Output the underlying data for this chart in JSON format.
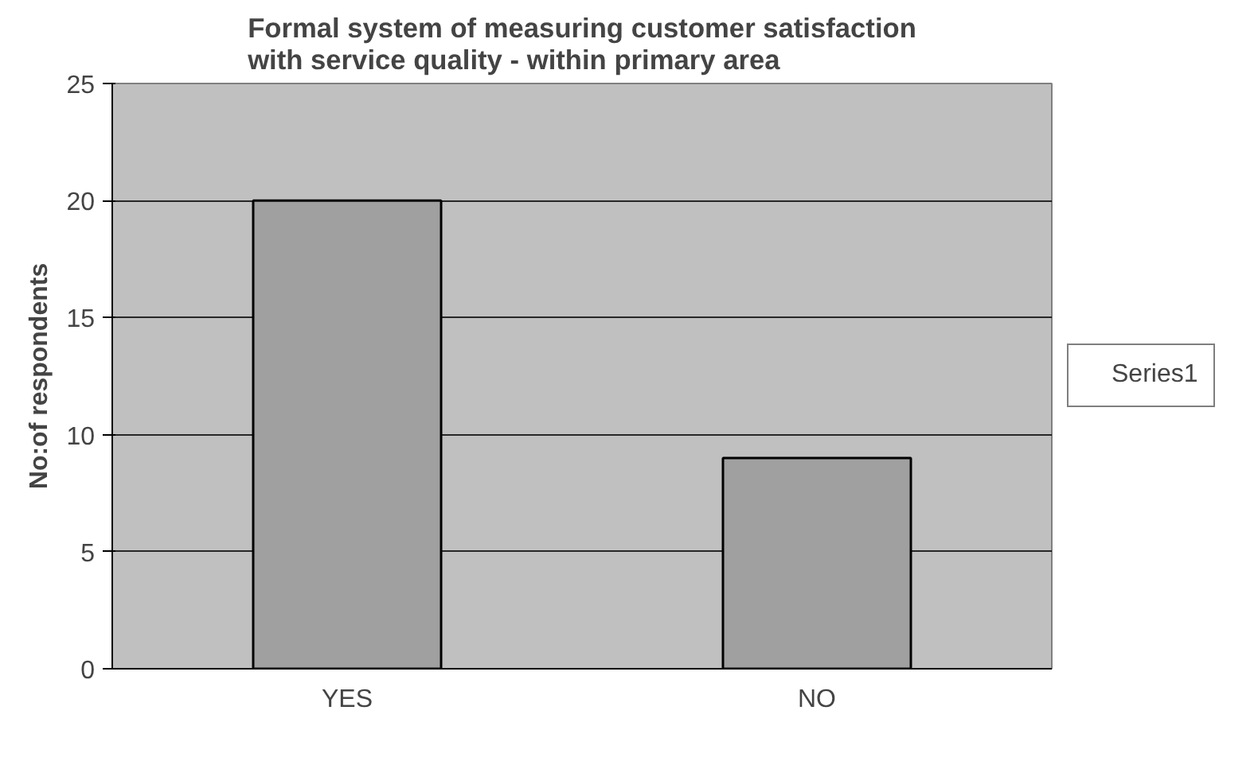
{
  "chart_data": {
    "type": "bar",
    "title": "Formal system of measuring customer satisfaction with service quality - within primary area",
    "ylabel": "No:of respondents",
    "categories": [
      "YES",
      "NO"
    ],
    "series": [
      {
        "name": "Series1",
        "color": "#a0a0a0",
        "values": [
          20,
          9
        ]
      }
    ],
    "ylim": [
      0,
      25
    ],
    "yticks": [
      0,
      5,
      10,
      15,
      20,
      25
    ],
    "grid": "y",
    "legend": "right"
  }
}
